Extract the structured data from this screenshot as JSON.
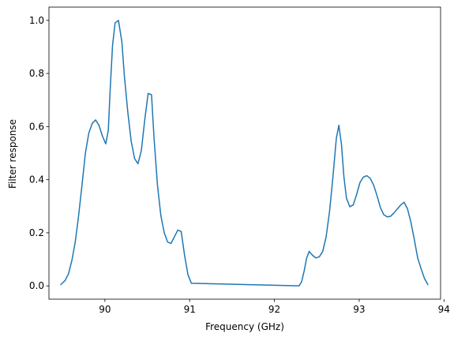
{
  "chart_data": {
    "type": "line",
    "title": "",
    "xlabel": "Frequency (GHz)",
    "ylabel": "Filter response",
    "xlim": [
      89.34,
      93.96
    ],
    "ylim": [
      -0.05,
      1.05
    ],
    "x_ticks": [
      90,
      91,
      92,
      93,
      94
    ],
    "y_ticks": [
      0.0,
      0.2,
      0.4,
      0.6,
      0.8,
      1.0
    ],
    "x_tick_labels": [
      "90",
      "91",
      "92",
      "93",
      "94"
    ],
    "y_tick_labels": [
      "0.0",
      "0.2",
      "0.4",
      "0.6",
      "0.8",
      "1.0"
    ],
    "grid": false,
    "line_color": "#1f77b4",
    "series": [
      {
        "x": [
          89.48,
          89.53,
          89.57,
          89.61,
          89.65,
          89.69,
          89.73,
          89.77,
          89.81,
          89.85,
          89.89,
          89.93,
          89.97,
          90.01,
          90.04,
          90.06,
          90.09,
          90.12,
          90.16,
          90.2,
          90.23,
          90.27,
          90.31,
          90.35,
          90.39,
          90.43,
          90.47,
          90.51,
          90.55,
          90.58,
          90.62,
          90.66,
          90.7,
          90.74,
          90.78,
          90.82,
          90.86,
          90.9,
          90.94,
          90.98,
          91.02,
          92.29,
          92.32,
          92.35,
          92.38,
          92.41,
          92.45,
          92.49,
          92.53,
          92.57,
          92.61,
          92.65,
          92.69,
          92.73,
          92.76,
          92.79,
          92.82,
          92.85,
          92.89,
          92.93,
          92.97,
          93.01,
          93.05,
          93.09,
          93.13,
          93.17,
          93.21,
          93.25,
          93.29,
          93.33,
          93.37,
          93.41,
          93.45,
          93.49,
          93.53,
          93.57,
          93.61,
          93.65,
          93.69,
          93.73,
          93.77,
          93.81
        ],
        "y": [
          0.005,
          0.02,
          0.045,
          0.095,
          0.165,
          0.265,
          0.38,
          0.5,
          0.575,
          0.612,
          0.625,
          0.605,
          0.565,
          0.535,
          0.585,
          0.725,
          0.905,
          0.99,
          1.0,
          0.92,
          0.79,
          0.655,
          0.545,
          0.48,
          0.46,
          0.51,
          0.625,
          0.725,
          0.72,
          0.555,
          0.38,
          0.265,
          0.2,
          0.165,
          0.16,
          0.185,
          0.21,
          0.205,
          0.115,
          0.042,
          0.01,
          0.0,
          0.015,
          0.055,
          0.105,
          0.13,
          0.115,
          0.105,
          0.11,
          0.13,
          0.185,
          0.28,
          0.41,
          0.555,
          0.605,
          0.535,
          0.41,
          0.33,
          0.298,
          0.305,
          0.345,
          0.39,
          0.41,
          0.415,
          0.405,
          0.38,
          0.34,
          0.295,
          0.268,
          0.26,
          0.262,
          0.275,
          0.29,
          0.305,
          0.315,
          0.29,
          0.24,
          0.175,
          0.105,
          0.065,
          0.028,
          0.005
        ]
      }
    ]
  }
}
